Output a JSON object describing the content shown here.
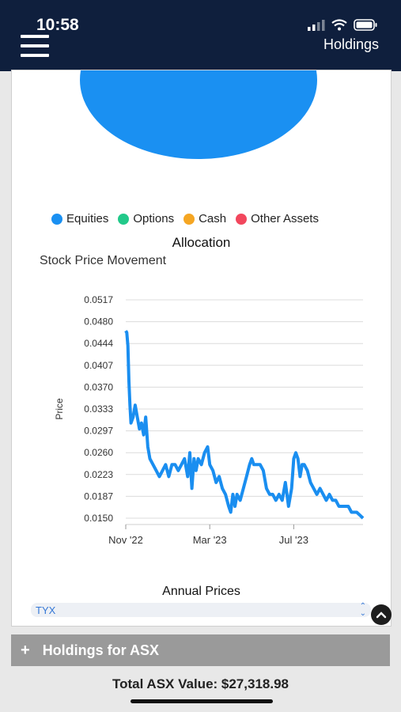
{
  "status": {
    "time": "10:58"
  },
  "header": {
    "title": "Holdings"
  },
  "allocation": {
    "legend": [
      {
        "label": "Equities",
        "color": "#1a90f2"
      },
      {
        "label": "Options",
        "color": "#22c98a"
      },
      {
        "label": "Cash",
        "color": "#f5a623"
      },
      {
        "label": "Other Assets",
        "color": "#f2475d"
      }
    ],
    "title": "Allocation"
  },
  "price_chart": {
    "title": "Stock Price Movement",
    "subtitle": "Annual Prices"
  },
  "chart_data": {
    "type": "line",
    "title": "Stock Price Movement",
    "xlabel": "",
    "ylabel": "Price",
    "yticks": [
      "0.0517",
      "0.0480",
      "0.0444",
      "0.0407",
      "0.0370",
      "0.0333",
      "0.0297",
      "0.0260",
      "0.0223",
      "0.0187",
      "0.0150"
    ],
    "ylim": [
      0.015,
      0.0517
    ],
    "xticks": [
      {
        "label": "Nov '22",
        "month": 0
      },
      {
        "label": "Mar '23",
        "month": 4
      },
      {
        "label": "Jul '23",
        "month": 8
      }
    ],
    "grid": true,
    "series": [
      {
        "color": "#1a8ef0",
        "points": [
          [
            0.0,
            0.0465
          ],
          [
            0.05,
            0.0462
          ],
          [
            0.1,
            0.044
          ],
          [
            0.15,
            0.038
          ],
          [
            0.2,
            0.034
          ],
          [
            0.25,
            0.031
          ],
          [
            0.35,
            0.032
          ],
          [
            0.45,
            0.034
          ],
          [
            0.55,
            0.032
          ],
          [
            0.65,
            0.03
          ],
          [
            0.75,
            0.031
          ],
          [
            0.85,
            0.029
          ],
          [
            0.95,
            0.032
          ],
          [
            1.05,
            0.027
          ],
          [
            1.15,
            0.025
          ],
          [
            1.3,
            0.024
          ],
          [
            1.45,
            0.023
          ],
          [
            1.6,
            0.022
          ],
          [
            1.75,
            0.023
          ],
          [
            1.9,
            0.024
          ],
          [
            2.05,
            0.022
          ],
          [
            2.2,
            0.024
          ],
          [
            2.35,
            0.024
          ],
          [
            2.5,
            0.023
          ],
          [
            2.65,
            0.024
          ],
          [
            2.8,
            0.025
          ],
          [
            2.95,
            0.022
          ],
          [
            3.05,
            0.026
          ],
          [
            3.15,
            0.02
          ],
          [
            3.25,
            0.025
          ],
          [
            3.35,
            0.023
          ],
          [
            3.45,
            0.025
          ],
          [
            3.6,
            0.024
          ],
          [
            3.75,
            0.026
          ],
          [
            3.9,
            0.027
          ],
          [
            4.0,
            0.024
          ],
          [
            4.15,
            0.023
          ],
          [
            4.3,
            0.021
          ],
          [
            4.45,
            0.022
          ],
          [
            4.6,
            0.02
          ],
          [
            4.75,
            0.019
          ],
          [
            4.9,
            0.017
          ],
          [
            5.0,
            0.016
          ],
          [
            5.1,
            0.019
          ],
          [
            5.2,
            0.017
          ],
          [
            5.3,
            0.019
          ],
          [
            5.45,
            0.018
          ],
          [
            5.6,
            0.02
          ],
          [
            5.75,
            0.022
          ],
          [
            5.9,
            0.024
          ],
          [
            6.0,
            0.025
          ],
          [
            6.1,
            0.024
          ],
          [
            6.25,
            0.024
          ],
          [
            6.4,
            0.024
          ],
          [
            6.55,
            0.023
          ],
          [
            6.7,
            0.02
          ],
          [
            6.85,
            0.019
          ],
          [
            7.0,
            0.019
          ],
          [
            7.15,
            0.018
          ],
          [
            7.3,
            0.019
          ],
          [
            7.45,
            0.018
          ],
          [
            7.6,
            0.021
          ],
          [
            7.75,
            0.017
          ],
          [
            7.9,
            0.02
          ],
          [
            8.0,
            0.025
          ],
          [
            8.1,
            0.026
          ],
          [
            8.2,
            0.025
          ],
          [
            8.3,
            0.022
          ],
          [
            8.4,
            0.024
          ],
          [
            8.5,
            0.024
          ],
          [
            8.65,
            0.023
          ],
          [
            8.8,
            0.021
          ],
          [
            8.95,
            0.02
          ],
          [
            9.1,
            0.019
          ],
          [
            9.25,
            0.02
          ],
          [
            9.4,
            0.019
          ],
          [
            9.55,
            0.018
          ],
          [
            9.7,
            0.019
          ],
          [
            9.85,
            0.018
          ],
          [
            10.0,
            0.018
          ],
          [
            10.15,
            0.017
          ],
          [
            10.3,
            0.017
          ],
          [
            10.45,
            0.017
          ],
          [
            10.6,
            0.017
          ],
          [
            10.75,
            0.016
          ],
          [
            10.9,
            0.016
          ],
          [
            11.0,
            0.016
          ],
          [
            11.15,
            0.0155
          ],
          [
            11.3,
            0.015
          ]
        ]
      }
    ]
  },
  "ticker_select": {
    "value": "TYX"
  },
  "holdings": {
    "label": "Holdings for ASX",
    "total": "Total ASX Value: $27,318.98"
  }
}
